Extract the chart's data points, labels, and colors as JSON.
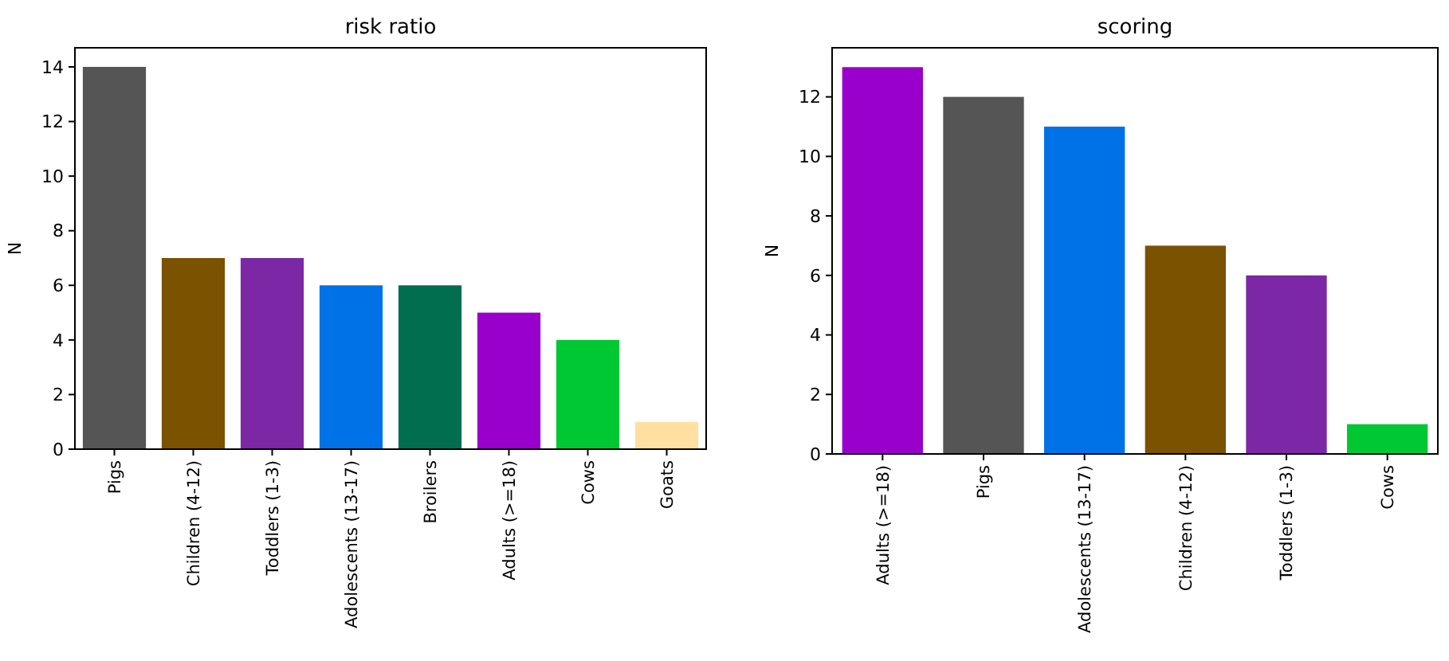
{
  "chart_data": [
    {
      "type": "bar",
      "title": "risk ratio",
      "ylabel": "N",
      "categories": [
        "Pigs",
        "Children (4-12)",
        "Toddlers (1-3)",
        "Adolescents (13-17)",
        "Broilers",
        "Adults (>=18)",
        "Cows",
        "Goats"
      ],
      "values": [
        14,
        7,
        7,
        6,
        6,
        5,
        4,
        1
      ],
      "colors": [
        "#555555",
        "#7a5200",
        "#7b27a6",
        "#0072e8",
        "#006e4f",
        "#9900cc",
        "#00c832",
        "#ffe0a0"
      ],
      "ylim": [
        0,
        14.7
      ],
      "yticks": [
        0,
        2,
        4,
        6,
        8,
        10,
        12,
        14
      ],
      "grid": false
    },
    {
      "type": "bar",
      "title": "scoring",
      "ylabel": "N",
      "categories": [
        "Adults (>=18)",
        "Pigs",
        "Adolescents (13-17)",
        "Children (4-12)",
        "Toddlers (1-3)",
        "Cows"
      ],
      "values": [
        13,
        12,
        11,
        7,
        6,
        1
      ],
      "colors": [
        "#9900cc",
        "#555555",
        "#0072e8",
        "#7a5200",
        "#7b27a6",
        "#00c832"
      ],
      "ylim": [
        0,
        13.65
      ],
      "yticks": [
        0,
        2,
        4,
        6,
        8,
        10,
        12
      ],
      "grid": false
    }
  ]
}
